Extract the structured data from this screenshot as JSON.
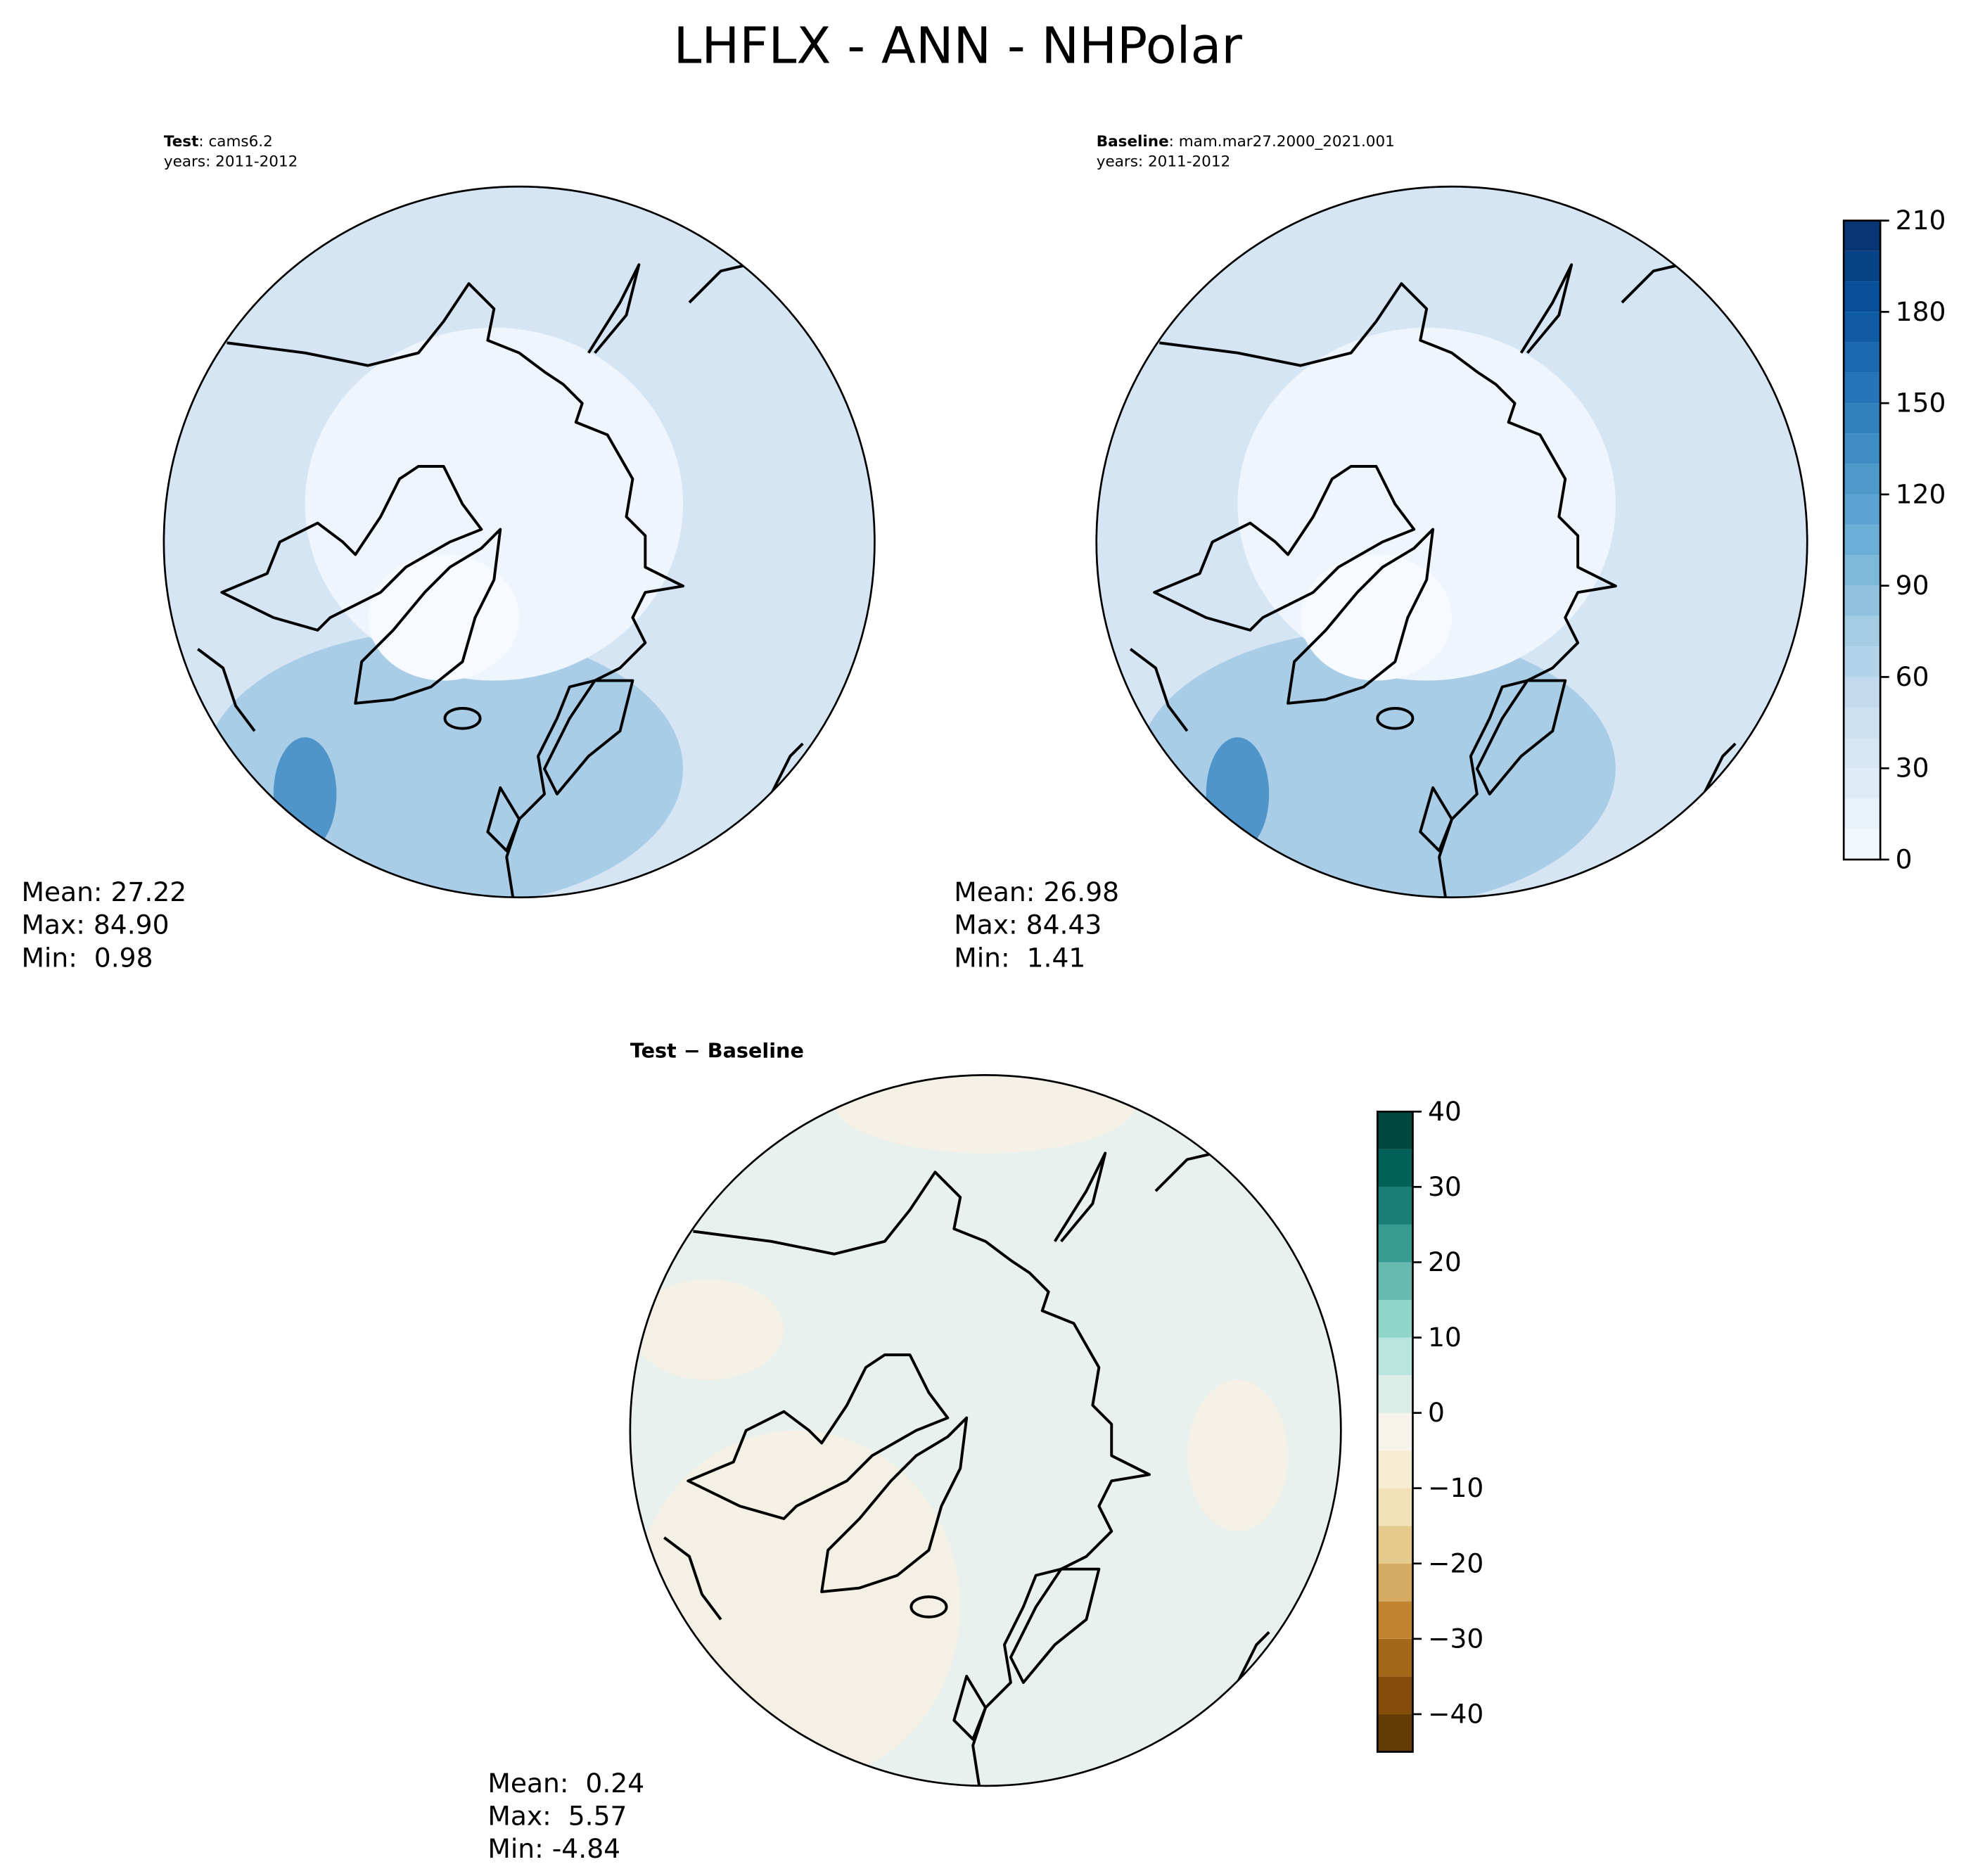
{
  "title": "LHFLX - ANN - NHPolar",
  "panels": [
    {
      "label": {
        "bold": "Test",
        "text": ": cams6.2"
      },
      "years": "years: 2011-2012",
      "stats": [
        "Mean: 27.22",
        "Max: 84.90",
        "Min:  0.98"
      ]
    },
    {
      "label": {
        "bold": "Baseline",
        "text": ": mam.mar27.2000_2021.001"
      },
      "years": "years: 2011-2012",
      "stats": [
        "Mean: 26.98",
        "Max: 84.43",
        "Min:  1.41"
      ]
    },
    {
      "label": {
        "bold": "Test − Baseline"
      },
      "stats": [
        "Mean:  0.24",
        "Max:  5.57",
        "Min: -4.84"
      ]
    }
  ],
  "colorbars": [
    {
      "type": "colorbar",
      "ylim": [
        0,
        210
      ],
      "yticks": [
        0,
        30,
        60,
        90,
        120,
        150,
        180,
        210
      ],
      "level_step": 10,
      "colors": [
        "#f7fbff",
        "#deebf7",
        "#c6dbef",
        "#9ecae1",
        "#6baed6",
        "#4292c6",
        "#2171b5",
        "#08519c",
        "#08306b"
      ]
    },
    {
      "type": "colorbar",
      "ylim": [
        -45,
        40
      ],
      "yticks": [
        {
          "value": -40,
          "label": "−40"
        },
        {
          "value": -30,
          "label": "−30"
        },
        {
          "value": -20,
          "label": "−20"
        },
        {
          "value": -10,
          "label": "−10"
        },
        0,
        10,
        20,
        30,
        40
      ],
      "level_step": 5,
      "colors": [
        "#543005",
        "#8c510a",
        "#bf812d",
        "#dfc27d",
        "#f6e8c3",
        "#f5f3ea",
        "#c7eae5",
        "#80cdc1",
        "#35978f",
        "#01665e",
        "#003c30"
      ]
    }
  ]
}
